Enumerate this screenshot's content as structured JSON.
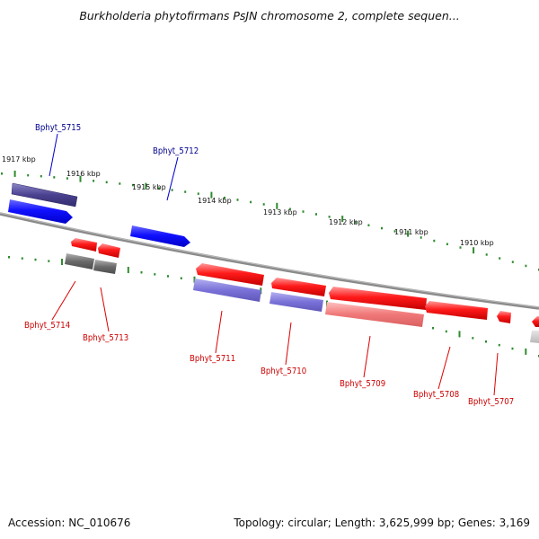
{
  "title": "Burkholderia phytofirmans PsJN chromosome 2, complete sequen...",
  "footer": {
    "accession": "Accession: NC_010676",
    "summary": "Topology: circular; Length: 3,625,999 bp; Genes: 3,169"
  },
  "colors": {
    "plus_label": "#00008b",
    "minus_label": "#cc0000",
    "tick": "#2e8b2e",
    "backbone": "#808080"
  },
  "kbp_ticks": [
    "1917 kbp",
    "1916 kbp",
    "1915 kbp",
    "1914 kbp",
    "1913 kbp",
    "1912 kbp",
    "1911 kbp",
    "1910 kbp"
  ],
  "genes_plus": [
    {
      "name": "Bphyt_5715",
      "label": "Bphyt_5715"
    },
    {
      "name": "Bphyt_5712",
      "label": "Bphyt_5712"
    }
  ],
  "genes_minus": [
    {
      "name": "Bphyt_5714",
      "label": "Bphyt_5714"
    },
    {
      "name": "Bphyt_5713",
      "label": "Bphyt_5713"
    },
    {
      "name": "Bphyt_5711",
      "label": "Bphyt_5711"
    },
    {
      "name": "Bphyt_5710",
      "label": "Bphyt_5710"
    },
    {
      "name": "Bphyt_5709",
      "label": "Bphyt_5709"
    },
    {
      "name": "Bphyt_5708",
      "label": "Bphyt_5708"
    },
    {
      "name": "Bphyt_5707",
      "label": "Bphyt_5707"
    }
  ]
}
